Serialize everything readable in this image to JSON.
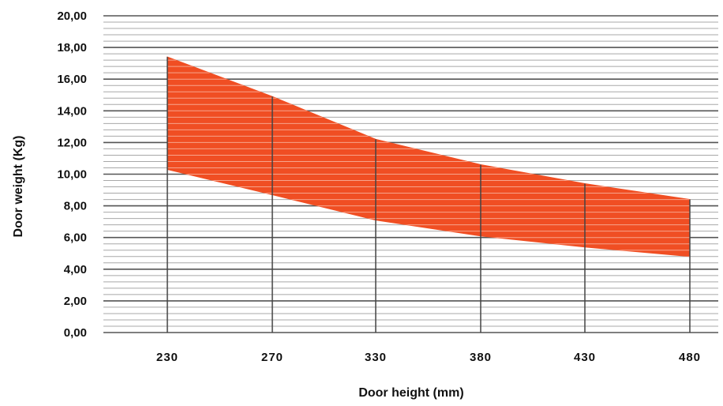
{
  "chart_data": {
    "type": "area",
    "xlabel": "Door height (mm)",
    "ylabel": "Door weight (Kg)",
    "categories": [
      "230",
      "270",
      "330",
      "380",
      "430",
      "480"
    ],
    "ytick_labels": [
      "0,00",
      "2,00",
      "4,00",
      "6,00",
      "8,00",
      "10,00",
      "12,00",
      "14,00",
      "16,00",
      "18,00",
      "20,00"
    ],
    "ylim": [
      0,
      20
    ],
    "y_major_step": 2,
    "y_minor_step": 0.4,
    "band": {
      "upper": [
        17.4,
        14.9,
        12.2,
        10.6,
        9.4,
        8.4
      ],
      "lower": [
        10.3,
        8.7,
        7.1,
        6.1,
        5.4,
        4.8
      ]
    },
    "fill_color": "#f04e23",
    "grid": true
  }
}
